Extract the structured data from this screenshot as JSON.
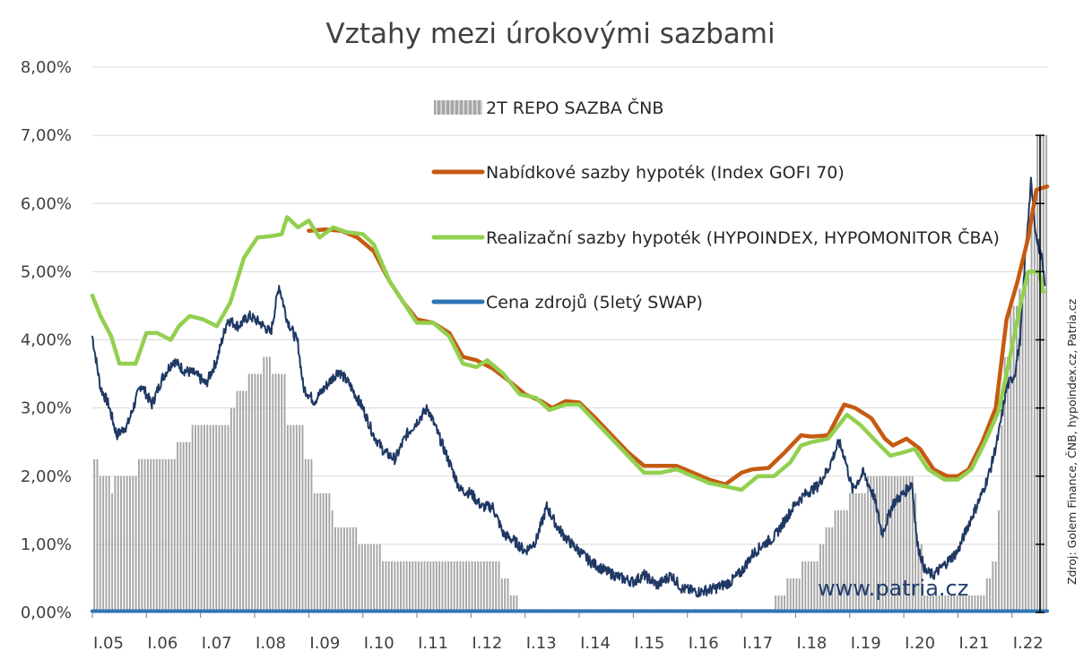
{
  "chart_data": {
    "type": "bar+line",
    "title": "Vztahy mezi úrokovými sazbami",
    "source": "Zdroj: Golem Finance, ČNB, hypoindex.cz, Patria.cz",
    "watermark": "www.patria.cz",
    "ylim": [
      0,
      8
    ],
    "yticks": [
      "0,00%",
      "1,00%",
      "2,00%",
      "3,00%",
      "4,00%",
      "5,00%",
      "6,00%",
      "7,00%",
      "8,00%"
    ],
    "xticks": [
      "I.05",
      "I.06",
      "I.07",
      "I.08",
      "I.09",
      "I.10",
      "I.11",
      "I.12",
      "I.13",
      "I.14",
      "I.15",
      "I.16",
      "I.17",
      "I.18",
      "I.19",
      "I.20",
      "I.21",
      "I.22"
    ],
    "xlim": [
      2005.0,
      2022.65
    ],
    "grid": true,
    "legend_position": "top-center",
    "series": [
      {
        "name": "2T REPO SAZBA ČNB",
        "type": "bar",
        "color": "#a6a6a6",
        "steps": [
          [
            2005.0,
            2.25
          ],
          [
            2005.08,
            2.0
          ],
          [
            2005.3,
            1.75
          ],
          [
            2005.38,
            2.0
          ],
          [
            2005.8,
            2.25
          ],
          [
            2006.55,
            2.5
          ],
          [
            2006.83,
            2.75
          ],
          [
            2007.5,
            3.0
          ],
          [
            2007.62,
            3.25
          ],
          [
            2007.87,
            3.5
          ],
          [
            2008.12,
            3.75
          ],
          [
            2008.3,
            3.5
          ],
          [
            2008.58,
            2.75
          ],
          [
            2008.88,
            2.25
          ],
          [
            2009.05,
            1.75
          ],
          [
            2009.37,
            1.5
          ],
          [
            2009.43,
            1.25
          ],
          [
            2009.9,
            1.0
          ],
          [
            2010.35,
            0.75
          ],
          [
            2012.55,
            0.5
          ],
          [
            2012.72,
            0.25
          ],
          [
            2012.85,
            0.05
          ],
          [
            2017.6,
            0.25
          ],
          [
            2017.8,
            0.5
          ],
          [
            2018.1,
            0.75
          ],
          [
            2018.4,
            1.0
          ],
          [
            2018.5,
            1.25
          ],
          [
            2018.7,
            1.5
          ],
          [
            2018.95,
            1.75
          ],
          [
            2019.3,
            2.0
          ],
          [
            2020.17,
            1.75
          ],
          [
            2020.24,
            1.0
          ],
          [
            2020.35,
            0.25
          ],
          [
            2021.5,
            0.5
          ],
          [
            2021.62,
            0.75
          ],
          [
            2021.7,
            1.5
          ],
          [
            2021.77,
            2.75
          ],
          [
            2021.85,
            3.75
          ],
          [
            2021.95,
            4.5
          ],
          [
            2022.1,
            4.75
          ],
          [
            2022.2,
            5.0
          ],
          [
            2022.3,
            5.75
          ],
          [
            2022.42,
            7.0
          ],
          [
            2022.65,
            7.0
          ]
        ]
      },
      {
        "name": "Nabídkové sazby hypoték (Index GOFI 70)",
        "type": "line",
        "color": "#c55a11",
        "points": [
          [
            2009.0,
            5.6
          ],
          [
            2009.3,
            5.62
          ],
          [
            2009.6,
            5.6
          ],
          [
            2009.9,
            5.5
          ],
          [
            2010.2,
            5.3
          ],
          [
            2010.5,
            4.85
          ],
          [
            2010.75,
            4.55
          ],
          [
            2011.0,
            4.3
          ],
          [
            2011.3,
            4.25
          ],
          [
            2011.6,
            4.1
          ],
          [
            2011.85,
            3.75
          ],
          [
            2012.1,
            3.7
          ],
          [
            2012.4,
            3.58
          ],
          [
            2012.7,
            3.4
          ],
          [
            2013.0,
            3.2
          ],
          [
            2013.3,
            3.1
          ],
          [
            2013.5,
            3.0
          ],
          [
            2013.75,
            3.1
          ],
          [
            2014.0,
            3.08
          ],
          [
            2014.3,
            2.85
          ],
          [
            2014.6,
            2.6
          ],
          [
            2014.9,
            2.35
          ],
          [
            2015.2,
            2.15
          ],
          [
            2015.5,
            2.15
          ],
          [
            2015.8,
            2.15
          ],
          [
            2016.1,
            2.05
          ],
          [
            2016.4,
            1.95
          ],
          [
            2016.7,
            1.88
          ],
          [
            2017.0,
            2.05
          ],
          [
            2017.2,
            2.1
          ],
          [
            2017.5,
            2.12
          ],
          [
            2017.8,
            2.35
          ],
          [
            2018.1,
            2.6
          ],
          [
            2018.3,
            2.58
          ],
          [
            2018.6,
            2.6
          ],
          [
            2018.9,
            3.05
          ],
          [
            2019.1,
            3.0
          ],
          [
            2019.4,
            2.85
          ],
          [
            2019.65,
            2.55
          ],
          [
            2019.8,
            2.45
          ],
          [
            2020.05,
            2.55
          ],
          [
            2020.3,
            2.4
          ],
          [
            2020.55,
            2.1
          ],
          [
            2020.8,
            2.0
          ],
          [
            2021.0,
            2.0
          ],
          [
            2021.2,
            2.1
          ],
          [
            2021.45,
            2.5
          ],
          [
            2021.7,
            3.0
          ],
          [
            2021.9,
            4.3
          ],
          [
            2022.1,
            4.85
          ],
          [
            2022.3,
            5.5
          ],
          [
            2022.45,
            6.2
          ],
          [
            2022.65,
            6.25
          ]
        ]
      },
      {
        "name": "Realizační sazby hypoték (HYPOINDEX, HYPOMONITOR ČBA)",
        "type": "line",
        "color": "#92d050",
        "points": [
          [
            2005.0,
            4.65
          ],
          [
            2005.15,
            4.35
          ],
          [
            2005.35,
            4.05
          ],
          [
            2005.5,
            3.65
          ],
          [
            2005.8,
            3.65
          ],
          [
            2006.0,
            4.1
          ],
          [
            2006.2,
            4.1
          ],
          [
            2006.45,
            4.0
          ],
          [
            2006.6,
            4.2
          ],
          [
            2006.8,
            4.35
          ],
          [
            2007.05,
            4.3
          ],
          [
            2007.3,
            4.2
          ],
          [
            2007.55,
            4.55
          ],
          [
            2007.8,
            5.2
          ],
          [
            2008.05,
            5.5
          ],
          [
            2008.3,
            5.52
          ],
          [
            2008.5,
            5.55
          ],
          [
            2008.6,
            5.8
          ],
          [
            2008.8,
            5.65
          ],
          [
            2009.0,
            5.75
          ],
          [
            2009.2,
            5.5
          ],
          [
            2009.45,
            5.65
          ],
          [
            2009.7,
            5.58
          ],
          [
            2010.0,
            5.55
          ],
          [
            2010.2,
            5.4
          ],
          [
            2010.5,
            4.85
          ],
          [
            2010.75,
            4.55
          ],
          [
            2011.0,
            4.25
          ],
          [
            2011.3,
            4.25
          ],
          [
            2011.6,
            4.05
          ],
          [
            2011.85,
            3.65
          ],
          [
            2012.1,
            3.6
          ],
          [
            2012.3,
            3.7
          ],
          [
            2012.6,
            3.5
          ],
          [
            2012.9,
            3.2
          ],
          [
            2013.2,
            3.15
          ],
          [
            2013.45,
            2.97
          ],
          [
            2013.75,
            3.05
          ],
          [
            2014.0,
            3.05
          ],
          [
            2014.3,
            2.8
          ],
          [
            2014.6,
            2.55
          ],
          [
            2014.9,
            2.3
          ],
          [
            2015.2,
            2.05
          ],
          [
            2015.5,
            2.05
          ],
          [
            2015.8,
            2.1
          ],
          [
            2016.1,
            2.0
          ],
          [
            2016.4,
            1.9
          ],
          [
            2016.7,
            1.85
          ],
          [
            2017.0,
            1.8
          ],
          [
            2017.3,
            2.0
          ],
          [
            2017.6,
            2.0
          ],
          [
            2017.9,
            2.2
          ],
          [
            2018.1,
            2.45
          ],
          [
            2018.3,
            2.5
          ],
          [
            2018.6,
            2.55
          ],
          [
            2018.95,
            2.9
          ],
          [
            2019.2,
            2.75
          ],
          [
            2019.5,
            2.5
          ],
          [
            2019.75,
            2.3
          ],
          [
            2020.0,
            2.35
          ],
          [
            2020.2,
            2.4
          ],
          [
            2020.45,
            2.1
          ],
          [
            2020.75,
            1.95
          ],
          [
            2021.0,
            1.95
          ],
          [
            2021.25,
            2.1
          ],
          [
            2021.5,
            2.5
          ],
          [
            2021.75,
            2.95
          ],
          [
            2021.95,
            3.7
          ],
          [
            2022.15,
            4.5
          ],
          [
            2022.3,
            5.0
          ],
          [
            2022.5,
            5.0
          ],
          [
            2022.58,
            4.7
          ]
        ]
      },
      {
        "name": "Cena zdrojů (5letý SWAP)",
        "type": "line",
        "color": "#2e75b6",
        "points": [
          [
            2005.0,
            0.02
          ],
          [
            2022.65,
            0.02
          ]
        ]
      },
      {
        "name": "",
        "type": "line",
        "color": "#1f3864",
        "points": [
          [
            2005.0,
            4.05
          ],
          [
            2005.15,
            3.3
          ],
          [
            2005.3,
            3.05
          ],
          [
            2005.45,
            2.6
          ],
          [
            2005.65,
            2.75
          ],
          [
            2005.9,
            3.35
          ],
          [
            2006.1,
            3.05
          ],
          [
            2006.3,
            3.45
          ],
          [
            2006.5,
            3.7
          ],
          [
            2006.7,
            3.55
          ],
          [
            2006.9,
            3.5
          ],
          [
            2007.1,
            3.35
          ],
          [
            2007.3,
            3.7
          ],
          [
            2007.5,
            4.3
          ],
          [
            2007.7,
            4.2
          ],
          [
            2007.9,
            4.35
          ],
          [
            2008.1,
            4.25
          ],
          [
            2008.3,
            4.1
          ],
          [
            2008.45,
            4.8
          ],
          [
            2008.6,
            4.3
          ],
          [
            2008.8,
            3.95
          ],
          [
            2008.9,
            3.3
          ],
          [
            2009.1,
            3.1
          ],
          [
            2009.35,
            3.35
          ],
          [
            2009.55,
            3.55
          ],
          [
            2009.75,
            3.35
          ],
          [
            2010.0,
            3.0
          ],
          [
            2010.2,
            2.6
          ],
          [
            2010.4,
            2.35
          ],
          [
            2010.6,
            2.25
          ],
          [
            2010.8,
            2.6
          ],
          [
            2011.0,
            2.8
          ],
          [
            2011.2,
            3.0
          ],
          [
            2011.4,
            2.6
          ],
          [
            2011.6,
            2.2
          ],
          [
            2011.8,
            1.8
          ],
          [
            2012.0,
            1.75
          ],
          [
            2012.2,
            1.55
          ],
          [
            2012.4,
            1.55
          ],
          [
            2012.6,
            1.15
          ],
          [
            2012.8,
            1.05
          ],
          [
            2013.0,
            0.9
          ],
          [
            2013.2,
            1.05
          ],
          [
            2013.4,
            1.55
          ],
          [
            2013.6,
            1.25
          ],
          [
            2013.8,
            1.05
          ],
          [
            2014.0,
            0.9
          ],
          [
            2014.2,
            0.75
          ],
          [
            2014.5,
            0.6
          ],
          [
            2014.8,
            0.5
          ],
          [
            2015.0,
            0.45
          ],
          [
            2015.2,
            0.55
          ],
          [
            2015.45,
            0.4
          ],
          [
            2015.7,
            0.55
          ],
          [
            2015.9,
            0.35
          ],
          [
            2016.2,
            0.3
          ],
          [
            2016.5,
            0.35
          ],
          [
            2016.8,
            0.45
          ],
          [
            2017.0,
            0.6
          ],
          [
            2017.2,
            0.85
          ],
          [
            2017.4,
            1.0
          ],
          [
            2017.6,
            1.1
          ],
          [
            2017.8,
            1.35
          ],
          [
            2018.0,
            1.6
          ],
          [
            2018.2,
            1.75
          ],
          [
            2018.4,
            1.85
          ],
          [
            2018.6,
            2.1
          ],
          [
            2018.8,
            2.5
          ],
          [
            2018.9,
            2.3
          ],
          [
            2019.05,
            1.8
          ],
          [
            2019.25,
            2.05
          ],
          [
            2019.45,
            1.7
          ],
          [
            2019.6,
            1.15
          ],
          [
            2019.8,
            1.6
          ],
          [
            2020.0,
            1.75
          ],
          [
            2020.15,
            1.9
          ],
          [
            2020.25,
            1.0
          ],
          [
            2020.4,
            0.6
          ],
          [
            2020.55,
            0.55
          ],
          [
            2020.75,
            0.7
          ],
          [
            2021.0,
            0.9
          ],
          [
            2021.2,
            1.3
          ],
          [
            2021.45,
            1.75
          ],
          [
            2021.6,
            2.1
          ],
          [
            2021.75,
            2.6
          ],
          [
            2021.9,
            3.3
          ],
          [
            2022.05,
            3.5
          ],
          [
            2022.15,
            4.0
          ],
          [
            2022.25,
            5.3
          ],
          [
            2022.35,
            6.3
          ],
          [
            2022.45,
            5.5
          ],
          [
            2022.55,
            5.2
          ],
          [
            2022.62,
            4.8
          ]
        ]
      }
    ]
  }
}
